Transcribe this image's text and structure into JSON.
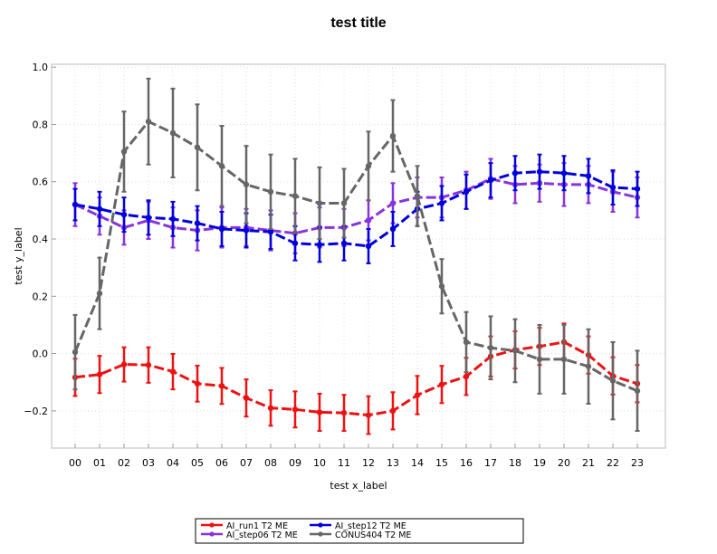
{
  "chart_data": {
    "type": "line",
    "title": "test title",
    "xlabel": "test x_label",
    "ylabel": "test y_label",
    "categories": [
      "00",
      "01",
      "02",
      "03",
      "04",
      "05",
      "06",
      "07",
      "08",
      "09",
      "10",
      "11",
      "12",
      "13",
      "14",
      "15",
      "16",
      "17",
      "18",
      "19",
      "20",
      "21",
      "22",
      "23"
    ],
    "ylim": [
      -0.33,
      1.01
    ],
    "yticks": [
      {
        "value": -0.2,
        "label": "−0.2"
      },
      {
        "value": 0.0,
        "label": "0.0"
      },
      {
        "value": 0.2,
        "label": "0.2"
      },
      {
        "value": 0.4,
        "label": "0.4"
      },
      {
        "value": 0.6,
        "label": "0.6"
      },
      {
        "value": 0.8,
        "label": "0.8"
      },
      {
        "value": 1.0,
        "label": "1.0"
      }
    ],
    "grid": true,
    "legend_placement": "bottom-center",
    "series": [
      {
        "name": "AI_run1 T2 ME",
        "color": "#ee1111",
        "values": [
          -0.083,
          -0.073,
          -0.038,
          -0.04,
          -0.063,
          -0.105,
          -0.113,
          -0.155,
          -0.19,
          -0.195,
          -0.205,
          -0.207,
          -0.215,
          -0.2,
          -0.145,
          -0.108,
          -0.08,
          -0.01,
          0.013,
          0.025,
          0.04,
          -0.005,
          -0.078,
          -0.105
        ],
        "errors": [
          0.065,
          0.065,
          0.06,
          0.062,
          0.062,
          0.063,
          0.063,
          0.065,
          0.062,
          0.063,
          0.065,
          0.063,
          0.066,
          0.065,
          0.067,
          0.065,
          0.065,
          0.07,
          0.065,
          0.065,
          0.065,
          0.065,
          0.065,
          0.065
        ]
      },
      {
        "name": "AI_step06 T2 ME",
        "color": "#8833dd",
        "values": [
          0.52,
          0.48,
          0.44,
          0.465,
          0.44,
          0.43,
          0.44,
          0.44,
          0.43,
          0.42,
          0.44,
          0.44,
          0.465,
          0.525,
          0.545,
          0.545,
          0.57,
          0.61,
          0.59,
          0.595,
          0.59,
          0.59,
          0.565,
          0.545
        ],
        "errors": [
          0.075,
          0.065,
          0.06,
          0.065,
          0.07,
          0.07,
          0.07,
          0.065,
          0.07,
          0.07,
          0.07,
          0.065,
          0.07,
          0.07,
          0.07,
          0.07,
          0.065,
          0.07,
          0.065,
          0.065,
          0.075,
          0.065,
          0.07,
          0.07
        ]
      },
      {
        "name": "AI_step12 T2 ME",
        "color": "#0000dd",
        "values": [
          0.52,
          0.505,
          0.485,
          0.475,
          0.47,
          0.455,
          0.435,
          0.43,
          0.425,
          0.385,
          0.38,
          0.385,
          0.375,
          0.435,
          0.505,
          0.525,
          0.565,
          0.605,
          0.63,
          0.635,
          0.63,
          0.62,
          0.58,
          0.575
        ],
        "errors": [
          0.055,
          0.06,
          0.06,
          0.06,
          0.06,
          0.06,
          0.06,
          0.06,
          0.06,
          0.06,
          0.06,
          0.06,
          0.06,
          0.06,
          0.06,
          0.06,
          0.06,
          0.06,
          0.06,
          0.06,
          0.06,
          0.06,
          0.06,
          0.06
        ]
      },
      {
        "name": "CONUS404 T2 ME",
        "color": "#666666",
        "values": [
          0.005,
          0.21,
          0.705,
          0.81,
          0.77,
          0.72,
          0.655,
          0.59,
          0.565,
          0.55,
          0.525,
          0.525,
          0.655,
          0.76,
          0.55,
          0.235,
          0.04,
          0.02,
          0.01,
          -0.02,
          -0.02,
          -0.045,
          -0.095,
          -0.13
        ],
        "errors": [
          0.13,
          0.125,
          0.14,
          0.15,
          0.155,
          0.15,
          0.14,
          0.135,
          0.13,
          0.13,
          0.125,
          0.12,
          0.12,
          0.125,
          0.105,
          0.095,
          0.105,
          0.11,
          0.11,
          0.12,
          0.12,
          0.13,
          0.135,
          0.14
        ]
      }
    ]
  }
}
